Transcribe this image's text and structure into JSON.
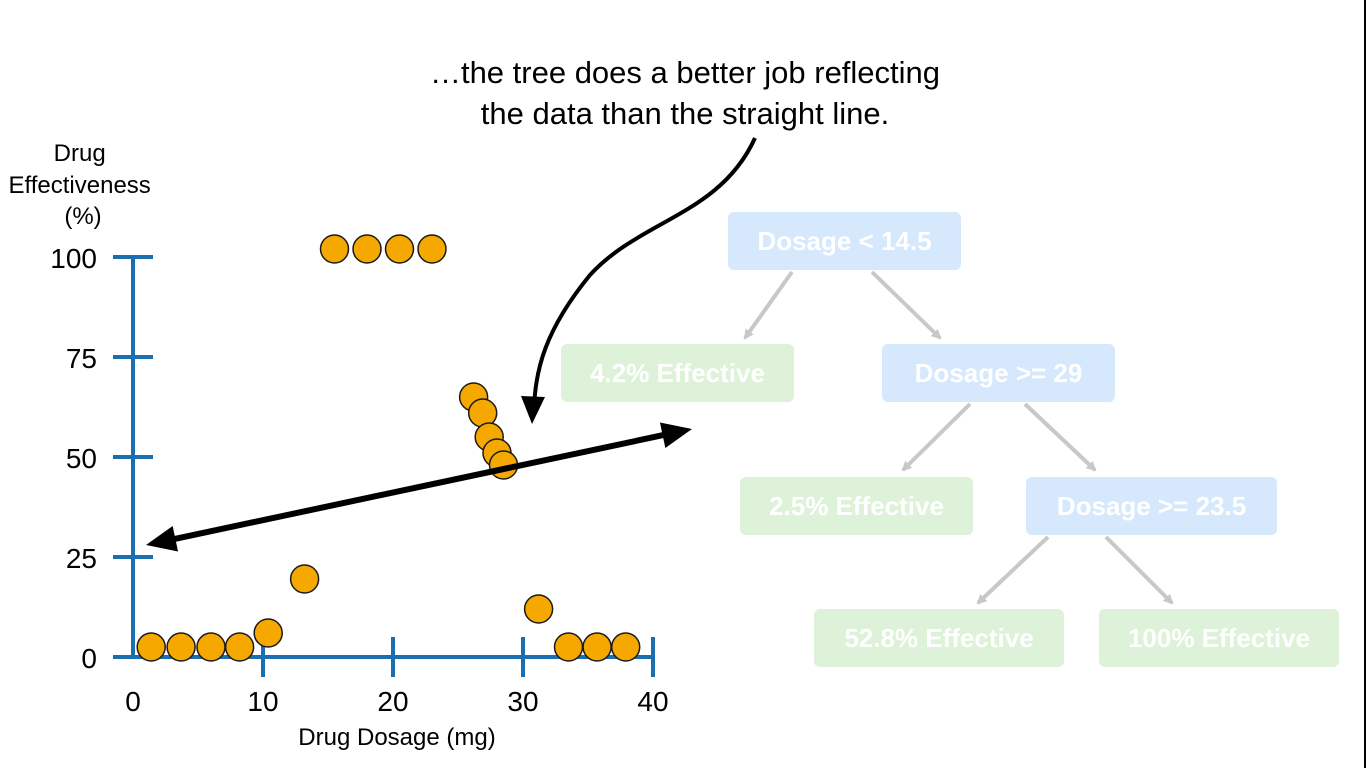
{
  "callout": {
    "lines": [
      "…the tree does a better job reflecting",
      "the data than the straight line."
    ]
  },
  "chart_data": {
    "type": "scatter",
    "title": "",
    "xlabel": "Drug Dosage (mg)",
    "ylabel": "Drug Effectiveness (%)",
    "ylabel_lines": [
      "Drug",
      "Effectiveness",
      "(%)"
    ],
    "xlim": [
      0,
      40
    ],
    "ylim": [
      0,
      100
    ],
    "xticks": [
      0,
      10,
      20,
      30,
      40
    ],
    "yticks": [
      0,
      25,
      50,
      75,
      100
    ],
    "grid": false,
    "legend": "none",
    "point_color": "#f5a800",
    "axis_color": "#1a6fb0",
    "points": [
      {
        "x": 1.4,
        "y": 2.5
      },
      {
        "x": 3.7,
        "y": 2.5
      },
      {
        "x": 6.0,
        "y": 2.5
      },
      {
        "x": 8.2,
        "y": 2.5
      },
      {
        "x": 10.4,
        "y": 6
      },
      {
        "x": 13.2,
        "y": 19.5
      },
      {
        "x": 15.5,
        "y": 102
      },
      {
        "x": 18.0,
        "y": 102
      },
      {
        "x": 20.5,
        "y": 102
      },
      {
        "x": 23.0,
        "y": 102
      },
      {
        "x": 26.2,
        "y": 65
      },
      {
        "x": 26.9,
        "y": 61
      },
      {
        "x": 27.4,
        "y": 55
      },
      {
        "x": 28.0,
        "y": 51
      },
      {
        "x": 28.5,
        "y": 48
      },
      {
        "x": 31.2,
        "y": 12
      },
      {
        "x": 33.5,
        "y": 2.5
      },
      {
        "x": 35.7,
        "y": 2.5
      },
      {
        "x": 37.9,
        "y": 2.5
      }
    ],
    "fit_line": {
      "x": [
        1,
        43
      ],
      "y": [
        28,
        57
      ]
    }
  },
  "tree": {
    "decision_color": "#d6e8fc",
    "leaf_color": "#ddf2d8",
    "nodes": {
      "root": "Dosage < 14.5",
      "leaf_a": "4.2% Effective",
      "split_b": "Dosage >= 29",
      "leaf_c": "2.5% Effective",
      "split_d": "Dosage >= 23.5",
      "leaf_e": "52.8% Effective",
      "leaf_f": "100% Effective"
    }
  }
}
